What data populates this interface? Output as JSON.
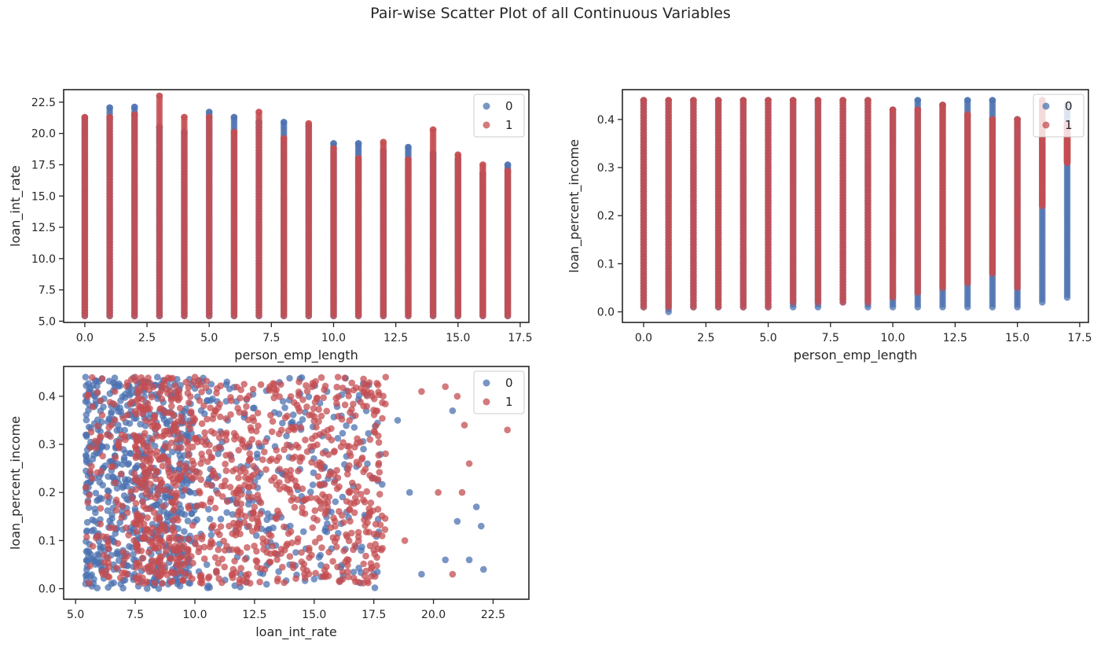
{
  "figure": {
    "title": "Pair-wise Scatter Plot of all Continuous Variables"
  },
  "colors": {
    "series_0": "#4c72b0",
    "series_1": "#c44e52",
    "axes": "#262626"
  },
  "chart_data": [
    {
      "type": "scatter",
      "title": "",
      "xlabel": "person_emp_length",
      "ylabel": "loan_int_rate",
      "xlim": [
        -0.85,
        17.85
      ],
      "ylim": [
        4.9,
        23.5
      ],
      "xticks": [
        0.0,
        2.5,
        5.0,
        7.5,
        10.0,
        12.5,
        15.0,
        17.5
      ],
      "xtick_labels": [
        "0.0",
        "2.5",
        "5.0",
        "7.5",
        "10.0",
        "12.5",
        "15.0",
        "17.5"
      ],
      "yticks": [
        5.0,
        7.5,
        10.0,
        12.5,
        15.0,
        17.5,
        20.0,
        22.5
      ],
      "ytick_labels": [
        "5.0",
        "7.5",
        "10.0",
        "12.5",
        "15.0",
        "17.5",
        "20.0",
        "22.5"
      ],
      "legend": {
        "position": "upper right",
        "entries": [
          "0",
          "1"
        ]
      },
      "grid": false,
      "series": [
        {
          "label": "0",
          "columns": [
            {
              "x": 0,
              "y_min": 5.42,
              "y_max": 21.2
            },
            {
              "x": 1,
              "y_min": 5.42,
              "y_max": 22.06
            },
            {
              "x": 2,
              "y_min": 5.42,
              "y_max": 22.11
            },
            {
              "x": 3,
              "y_min": 5.42,
              "y_max": 20.5
            },
            {
              "x": 4,
              "y_min": 5.42,
              "y_max": 20.1
            },
            {
              "x": 5,
              "y_min": 5.42,
              "y_max": 21.7
            },
            {
              "x": 6,
              "y_min": 5.42,
              "y_max": 21.3
            },
            {
              "x": 7,
              "y_min": 5.42,
              "y_max": 20.9
            },
            {
              "x": 8,
              "y_min": 5.42,
              "y_max": 20.9
            },
            {
              "x": 9,
              "y_min": 5.42,
              "y_max": 20.6
            },
            {
              "x": 10,
              "y_min": 5.42,
              "y_max": 19.2
            },
            {
              "x": 11,
              "y_min": 5.42,
              "y_max": 19.2
            },
            {
              "x": 12,
              "y_min": 5.42,
              "y_max": 18.6
            },
            {
              "x": 13,
              "y_min": 5.42,
              "y_max": 18.9
            },
            {
              "x": 14,
              "y_min": 5.42,
              "y_max": 18.4
            },
            {
              "x": 15,
              "y_min": 5.42,
              "y_max": 17.9
            },
            {
              "x": 16,
              "y_min": 5.42,
              "y_max": 16.8
            },
            {
              "x": 17,
              "y_min": 5.42,
              "y_max": 17.5
            }
          ]
        },
        {
          "label": "1",
          "columns": [
            {
              "x": 0,
              "y_min": 5.42,
              "y_max": 21.3
            },
            {
              "x": 1,
              "y_min": 5.42,
              "y_max": 21.3
            },
            {
              "x": 2,
              "y_min": 5.42,
              "y_max": 21.5
            },
            {
              "x": 3,
              "y_min": 5.42,
              "y_max": 23.0
            },
            {
              "x": 4,
              "y_min": 5.42,
              "y_max": 21.3
            },
            {
              "x": 5,
              "y_min": 5.42,
              "y_max": 21.3
            },
            {
              "x": 6,
              "y_min": 5.42,
              "y_max": 20.1
            },
            {
              "x": 7,
              "y_min": 5.42,
              "y_max": 21.7
            },
            {
              "x": 8,
              "y_min": 5.42,
              "y_max": 19.6
            },
            {
              "x": 9,
              "y_min": 5.42,
              "y_max": 20.8
            },
            {
              "x": 10,
              "y_min": 5.42,
              "y_max": 18.8
            },
            {
              "x": 11,
              "y_min": 5.42,
              "y_max": 18.0
            },
            {
              "x": 12,
              "y_min": 5.42,
              "y_max": 19.3
            },
            {
              "x": 13,
              "y_min": 5.42,
              "y_max": 17.9
            },
            {
              "x": 14,
              "y_min": 5.42,
              "y_max": 20.3
            },
            {
              "x": 15,
              "y_min": 5.42,
              "y_max": 18.3
            },
            {
              "x": 16,
              "y_min": 5.42,
              "y_max": 17.5
            },
            {
              "x": 17,
              "y_min": 5.42,
              "y_max": 17.0
            }
          ]
        }
      ]
    },
    {
      "type": "scatter",
      "title": "",
      "xlabel": "person_emp_length",
      "ylabel": "loan_percent_income",
      "xlim": [
        -0.85,
        17.85
      ],
      "ylim": [
        -0.022,
        0.462
      ],
      "xticks": [
        0.0,
        2.5,
        5.0,
        7.5,
        10.0,
        12.5,
        15.0,
        17.5
      ],
      "xtick_labels": [
        "0.0",
        "2.5",
        "5.0",
        "7.5",
        "10.0",
        "12.5",
        "15.0",
        "17.5"
      ],
      "yticks": [
        0.0,
        0.1,
        0.2,
        0.3,
        0.4
      ],
      "ytick_labels": [
        "0.0",
        "0.1",
        "0.2",
        "0.3",
        "0.4"
      ],
      "legend": {
        "position": "upper right",
        "entries": [
          "0",
          "1"
        ]
      },
      "grid": false,
      "series": [
        {
          "label": "0",
          "columns": [
            {
              "x": 0,
              "y_min": 0.01,
              "y_max": 0.44
            },
            {
              "x": 1,
              "y_min": 0.0,
              "y_max": 0.44
            },
            {
              "x": 2,
              "y_min": 0.01,
              "y_max": 0.44
            },
            {
              "x": 3,
              "y_min": 0.01,
              "y_max": 0.44
            },
            {
              "x": 4,
              "y_min": 0.01,
              "y_max": 0.44
            },
            {
              "x": 5,
              "y_min": 0.01,
              "y_max": 0.44
            },
            {
              "x": 6,
              "y_min": 0.01,
              "y_max": 0.44
            },
            {
              "x": 7,
              "y_min": 0.01,
              "y_max": 0.44
            },
            {
              "x": 8,
              "y_min": 0.02,
              "y_max": 0.44
            },
            {
              "x": 9,
              "y_min": 0.01,
              "y_max": 0.44
            },
            {
              "x": 10,
              "y_min": 0.01,
              "y_max": 0.42
            },
            {
              "x": 11,
              "y_min": 0.01,
              "y_max": 0.44
            },
            {
              "x": 12,
              "y_min": 0.01,
              "y_max": 0.43
            },
            {
              "x": 13,
              "y_min": 0.01,
              "y_max": 0.44
            },
            {
              "x": 14,
              "y_min": 0.01,
              "y_max": 0.44
            },
            {
              "x": 15,
              "y_min": 0.01,
              "y_max": 0.4
            },
            {
              "x": 16,
              "y_min": 0.02,
              "y_max": 0.44
            },
            {
              "x": 17,
              "y_min": 0.03,
              "y_max": 0.43
            }
          ]
        },
        {
          "label": "1",
          "columns": [
            {
              "x": 0,
              "y_min": 0.01,
              "y_max": 0.44
            },
            {
              "x": 1,
              "y_min": 0.01,
              "y_max": 0.44
            },
            {
              "x": 2,
              "y_min": 0.01,
              "y_max": 0.44
            },
            {
              "x": 3,
              "y_min": 0.01,
              "y_max": 0.44
            },
            {
              "x": 4,
              "y_min": 0.01,
              "y_max": 0.44
            },
            {
              "x": 5,
              "y_min": 0.01,
              "y_max": 0.44
            },
            {
              "x": 6,
              "y_min": 0.02,
              "y_max": 0.44
            },
            {
              "x": 7,
              "y_min": 0.02,
              "y_max": 0.44
            },
            {
              "x": 8,
              "y_min": 0.02,
              "y_max": 0.44
            },
            {
              "x": 9,
              "y_min": 0.02,
              "y_max": 0.44
            },
            {
              "x": 10,
              "y_min": 0.03,
              "y_max": 0.42
            },
            {
              "x": 11,
              "y_min": 0.04,
              "y_max": 0.42
            },
            {
              "x": 12,
              "y_min": 0.05,
              "y_max": 0.43
            },
            {
              "x": 13,
              "y_min": 0.06,
              "y_max": 0.41
            },
            {
              "x": 14,
              "y_min": 0.08,
              "y_max": 0.4
            },
            {
              "x": 15,
              "y_min": 0.05,
              "y_max": 0.4
            },
            {
              "x": 16,
              "y_min": 0.22,
              "y_max": 0.44
            },
            {
              "x": 17,
              "y_min": 0.31,
              "y_max": 0.39
            }
          ]
        }
      ]
    },
    {
      "type": "scatter",
      "title": "",
      "xlabel": "loan_int_rate",
      "ylabel": "loan_percent_income",
      "xlim": [
        4.5,
        24.0
      ],
      "ylim": [
        -0.022,
        0.462
      ],
      "xticks": [
        5.0,
        7.5,
        10.0,
        12.5,
        15.0,
        17.5,
        20.0,
        22.5
      ],
      "xtick_labels": [
        "5.0",
        "7.5",
        "10.0",
        "12.5",
        "15.0",
        "17.5",
        "20.0",
        "22.5"
      ],
      "yticks": [
        0.0,
        0.1,
        0.2,
        0.3,
        0.4
      ],
      "ytick_labels": [
        "0.0",
        "0.1",
        "0.2",
        "0.3",
        "0.4"
      ],
      "legend": {
        "position": "upper right",
        "entries": [
          "0",
          "1"
        ]
      },
      "grid": false,
      "series": [
        {
          "label": "0",
          "x_range": [
            5.42,
            22.1
          ],
          "y_range": [
            0.0,
            0.44
          ],
          "sample_points": [
            [
              5.42,
              0.01
            ],
            [
              5.42,
              0.44
            ],
            [
              6.0,
              0.3
            ],
            [
              7.5,
              0.25
            ],
            [
              8.0,
              0.0
            ],
            [
              9.0,
              0.15
            ],
            [
              10.5,
              0.05
            ],
            [
              13.0,
              0.12
            ],
            [
              15.0,
              0.02
            ],
            [
              17.5,
              0.03
            ],
            [
              19.5,
              0.03
            ],
            [
              21.0,
              0.14
            ],
            [
              21.5,
              0.06
            ],
            [
              21.8,
              0.17
            ],
            [
              22.1,
              0.04
            ],
            [
              22.0,
              0.13
            ],
            [
              20.8,
              0.37
            ],
            [
              20.5,
              0.06
            ],
            [
              18.5,
              0.35
            ],
            [
              19.0,
              0.2
            ]
          ]
        },
        {
          "label": "1",
          "x_range": [
            5.42,
            23.1
          ],
          "y_range": [
            0.01,
            0.44
          ],
          "sample_points": [
            [
              5.5,
              0.4
            ],
            [
              6.5,
              0.34
            ],
            [
              7.5,
              0.44
            ],
            [
              9.0,
              0.2
            ],
            [
              10.0,
              0.44
            ],
            [
              12.0,
              0.3
            ],
            [
              14.0,
              0.2
            ],
            [
              16.0,
              0.44
            ],
            [
              18.0,
              0.44
            ],
            [
              19.5,
              0.41
            ],
            [
              20.5,
              0.42
            ],
            [
              20.8,
              0.03
            ],
            [
              21.0,
              0.4
            ],
            [
              21.3,
              0.34
            ],
            [
              21.5,
              0.26
            ],
            [
              20.2,
              0.2
            ],
            [
              21.2,
              0.2
            ],
            [
              23.1,
              0.33
            ],
            [
              18.8,
              0.1
            ],
            [
              17.5,
              0.08
            ]
          ]
        }
      ]
    }
  ]
}
